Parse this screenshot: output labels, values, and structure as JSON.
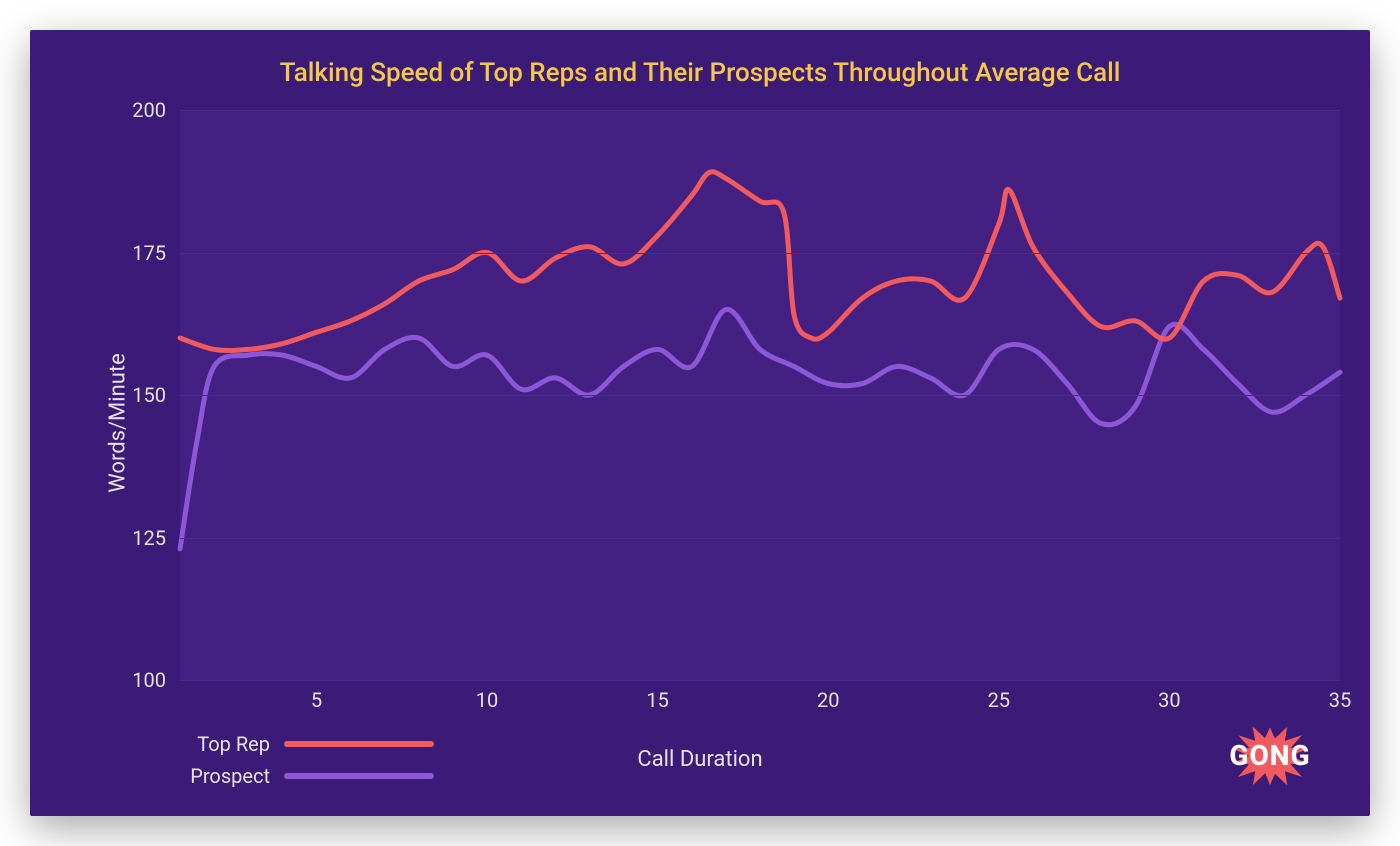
{
  "chart": {
    "type": "line",
    "title": "Talking Speed of Top Reps and Their Prospects Throughout Average Call",
    "title_color": "#f5c945",
    "title_fontsize": 26,
    "background_color": "#3c1a78",
    "plot_background_color": "#432082",
    "grid_color": "#4c2a92",
    "text_color": "#e8e4f2",
    "ylabel": "Words/Minute",
    "xlabel": "Call Duration",
    "label_fontsize": 22,
    "tick_fontsize": 20,
    "xlim": [
      1,
      35
    ],
    "ylim": [
      100,
      200
    ],
    "yticks": [
      100,
      125,
      150,
      175,
      200
    ],
    "xticks": [
      5,
      10,
      15,
      20,
      25,
      30,
      35
    ],
    "line_width": 5,
    "series": [
      {
        "name": "Top Rep",
        "color": "#f15a5f",
        "x": [
          1,
          2,
          3,
          4,
          5,
          6,
          7,
          8,
          9,
          10,
          11,
          12,
          13,
          14,
          15,
          16,
          16.5,
          17,
          18,
          18.7,
          19,
          19.5,
          20,
          21,
          22,
          23,
          24,
          25,
          25.3,
          26,
          27,
          28,
          29,
          30,
          31,
          32,
          33,
          34,
          34.5,
          35
        ],
        "y": [
          160,
          158,
          158,
          159,
          161,
          163,
          166,
          170,
          172,
          175,
          170,
          174,
          176,
          173,
          178,
          185,
          189,
          188,
          184,
          182,
          164,
          160,
          161,
          167,
          170,
          170,
          167,
          180,
          186,
          176,
          168,
          162,
          163,
          160,
          170,
          171,
          168,
          175,
          176,
          167
        ]
      },
      {
        "name": "Prospect",
        "color": "#8d58d8",
        "x": [
          1,
          1.5,
          2,
          3,
          4,
          5,
          6,
          7,
          8,
          9,
          10,
          11,
          12,
          13,
          14,
          15,
          16,
          17,
          18,
          19,
          20,
          21,
          22,
          23,
          24,
          25,
          26,
          27,
          28,
          29,
          30,
          31,
          32,
          33,
          34,
          35
        ],
        "y": [
          123,
          142,
          155,
          157,
          157,
          155,
          153,
          158,
          160,
          155,
          157,
          151,
          153,
          150,
          155,
          158,
          155,
          165,
          158,
          155,
          152,
          152,
          155,
          153,
          150,
          158,
          158,
          152,
          145,
          148,
          162,
          158,
          152,
          147,
          150,
          154
        ]
      }
    ],
    "legend": {
      "items": [
        {
          "label": "Top Rep",
          "color": "#f15a5f"
        },
        {
          "label": "Prospect",
          "color": "#8d58d8"
        }
      ]
    },
    "logo": {
      "text": "GONG",
      "burst_color": "#f15a5f",
      "text_color": "#ffffff"
    }
  }
}
